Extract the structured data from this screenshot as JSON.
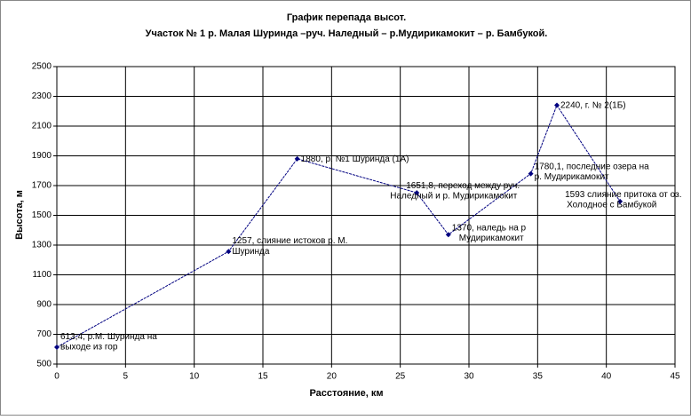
{
  "chart_data": {
    "type": "line",
    "title": "График перепада высот.",
    "subtitle": "Участок № 1 р. Малая Шуринда –руч. Наледный – р.Мудирикамокит – р. Бамбукой.",
    "x_label": "Расстояние, км",
    "y_label": "Высота, м",
    "x": [
      0,
      12.5,
      17.5,
      26.2,
      28.5,
      34.5,
      36.4,
      41
    ],
    "series": [
      {
        "name": "Высота",
        "color": "#000080",
        "values": [
          613.4,
          1257,
          1880,
          1651.8,
          1370,
          1780.1,
          2240,
          1593
        ],
        "value_labels": [
          "613,4",
          "1257",
          "1880",
          "1651,8",
          "1370",
          "1780,1",
          "2240",
          "1593"
        ],
        "label_notes": [
          [
            ", р.М. Шуринда на",
            "выходе из гор"
          ],
          [
            ", слияние истоков р. М.",
            "Шуринда"
          ],
          [
            ", р. №1 Шуринда (1А)"
          ],
          [
            ", переход между руч.",
            "Наледный и р. Мудирикамокит"
          ],
          [
            ", наледь на р",
            "Мудирикамокит"
          ],
          [
            ", последние озера на",
            "р. Мудирикамокит"
          ],
          [
            ", г. № 2(1Б)"
          ],
          [
            " слияние притока от оз.",
            "Холодное с Бамбукой"
          ]
        ]
      }
    ],
    "xlim": [
      0,
      45
    ],
    "xticks": [
      0,
      5,
      10,
      15,
      20,
      25,
      30,
      35,
      40,
      45
    ],
    "ylim": [
      500,
      2500
    ],
    "yticks": [
      500,
      700,
      900,
      1100,
      1300,
      1500,
      1700,
      1900,
      2100,
      2300,
      2500
    ],
    "grid": true
  }
}
